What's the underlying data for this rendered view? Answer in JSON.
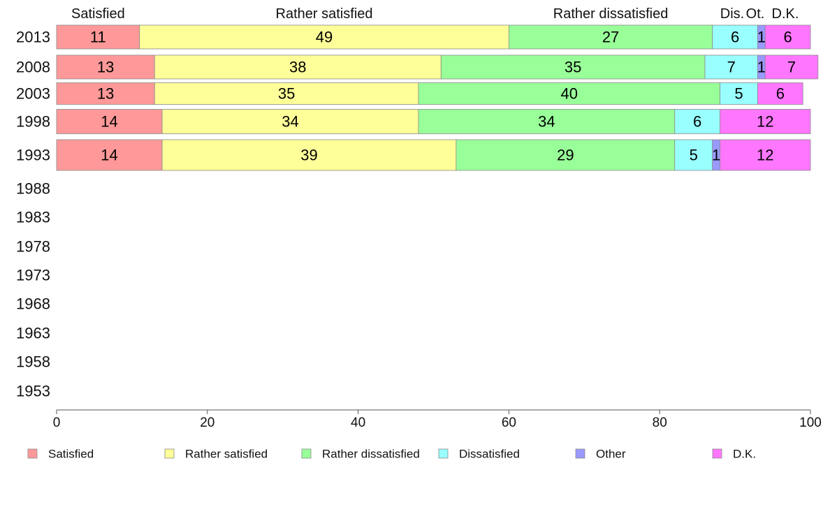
{
  "chart_data": {
    "type": "bar",
    "orientation": "horizontal",
    "stacked": true,
    "categories": [
      "2013",
      "2008",
      "2003",
      "1998",
      "1993",
      "1988",
      "1983",
      "1978",
      "1973",
      "1968",
      "1963",
      "1958",
      "1953"
    ],
    "series": [
      {
        "name": "Satisfied",
        "values": [
          11,
          13,
          13,
          14,
          14,
          null,
          null,
          null,
          null,
          null,
          null,
          null,
          null
        ],
        "color": "#ff9999"
      },
      {
        "name": "Rather satisfied",
        "values": [
          49,
          38,
          35,
          34,
          39,
          null,
          null,
          null,
          null,
          null,
          null,
          null,
          null
        ],
        "color": "#ffff99"
      },
      {
        "name": "Rather dissatisfied",
        "values": [
          27,
          35,
          40,
          34,
          29,
          null,
          null,
          null,
          null,
          null,
          null,
          null,
          null
        ],
        "color": "#99ff99"
      },
      {
        "name": "Dissatisfied",
        "values": [
          6,
          7,
          5,
          6,
          5,
          null,
          null,
          null,
          null,
          null,
          null,
          null,
          null
        ],
        "color": "#99ffff"
      },
      {
        "name": "Other",
        "values": [
          1,
          1,
          0,
          0,
          1,
          null,
          null,
          null,
          null,
          null,
          null,
          null,
          null
        ],
        "color": "#9999ff"
      },
      {
        "name": "D.K.",
        "values": [
          6,
          7,
          6,
          12,
          12,
          null,
          null,
          null,
          null,
          null,
          null,
          null,
          null
        ],
        "color": "#ff77ff"
      }
    ],
    "top_labels": [
      "Satisfied",
      "Rather satisfied",
      "Rather dissatisfied",
      "Dis.",
      "Ot.",
      "D.K."
    ],
    "xlim": [
      0,
      100
    ],
    "xticks": [
      0,
      20,
      40,
      60,
      80,
      100
    ],
    "grid": false,
    "legend_position": "bottom"
  }
}
